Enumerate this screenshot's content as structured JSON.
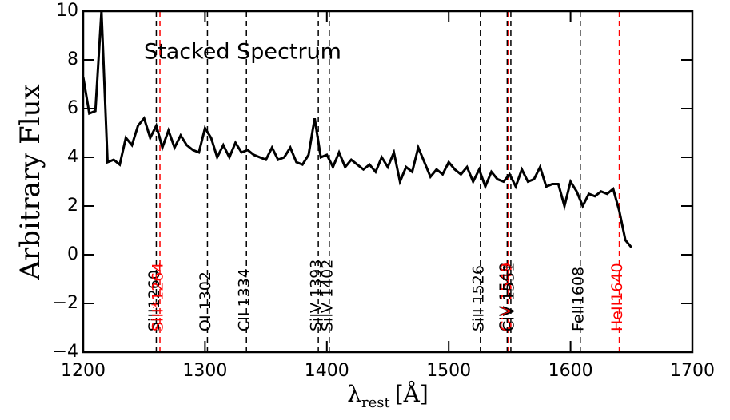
{
  "chart_data": {
    "type": "line",
    "title": "Stacked Spectrum",
    "y_label": "Arbitrary Flux",
    "x_label": {
      "symbol": "λ",
      "subscript": "rest",
      "unit": "[Å]"
    },
    "xlim": [
      1200,
      1700
    ],
    "xticks": [
      1200,
      1300,
      1400,
      1500,
      1600,
      1700
    ],
    "ylim": [
      -4,
      10
    ],
    "yticks": [
      {
        "value": -4,
        "label": "−4"
      },
      {
        "value": -2,
        "label": "−2"
      },
      0,
      2,
      4,
      6,
      8,
      10
    ],
    "series": [
      {
        "name": "Stacked Spectrum",
        "color": "#000000",
        "x": [
          1200,
          1205,
          1210,
          1215,
          1220,
          1225,
          1230,
          1235,
          1240,
          1245,
          1250,
          1255,
          1260,
          1265,
          1270,
          1275,
          1280,
          1285,
          1290,
          1295,
          1300,
          1305,
          1310,
          1315,
          1320,
          1325,
          1330,
          1335,
          1340,
          1345,
          1350,
          1355,
          1360,
          1365,
          1370,
          1375,
          1380,
          1385,
          1390,
          1395,
          1400,
          1405,
          1410,
          1415,
          1420,
          1425,
          1430,
          1435,
          1440,
          1445,
          1450,
          1455,
          1460,
          1465,
          1470,
          1475,
          1480,
          1485,
          1490,
          1495,
          1500,
          1505,
          1510,
          1515,
          1520,
          1525,
          1530,
          1535,
          1540,
          1545,
          1550,
          1555,
          1560,
          1565,
          1570,
          1575,
          1580,
          1585,
          1590,
          1595,
          1600,
          1605,
          1610,
          1615,
          1620,
          1625,
          1630,
          1635,
          1640,
          1645,
          1650
        ],
        "values": [
          7.3,
          5.8,
          5.9,
          10,
          3.8,
          3.9,
          3.7,
          4.8,
          4.5,
          5.3,
          5.6,
          4.8,
          5.3,
          4.4,
          5.1,
          4.4,
          4.9,
          4.5,
          4.3,
          4.2,
          5.2,
          4.8,
          4.0,
          4.5,
          4.0,
          4.6,
          4.2,
          4.3,
          4.1,
          4.0,
          3.9,
          4.4,
          3.9,
          4.0,
          4.4,
          3.8,
          3.7,
          4.1,
          5.6,
          4.0,
          4.1,
          3.6,
          4.2,
          3.6,
          3.9,
          3.7,
          3.5,
          3.7,
          3.4,
          4.0,
          3.6,
          4.2,
          3.0,
          3.6,
          3.4,
          4.4,
          3.8,
          3.2,
          3.5,
          3.3,
          3.8,
          3.5,
          3.3,
          3.6,
          3.0,
          3.5,
          2.8,
          3.4,
          3.1,
          3.0,
          3.3,
          2.8,
          3.5,
          3.0,
          3.1,
          3.6,
          2.8,
          2.9,
          2.9,
          2.0,
          3.0,
          2.6,
          2.0,
          2.5,
          2.4,
          2.6,
          2.5,
          2.7,
          1.8,
          0.6,
          0.3
        ]
      }
    ],
    "lines": [
      {
        "label": "SiII1260",
        "x": 1260,
        "color": "#000000"
      },
      {
        "label": "SiII*1264",
        "x": 1263,
        "color": "#ff0000"
      },
      {
        "label": "OI 1302",
        "x": 1302,
        "color": "#000000"
      },
      {
        "label": "CII 1334",
        "x": 1334,
        "color": "#000000"
      },
      {
        "label": "SiIV 1393",
        "x": 1393,
        "color": "#000000"
      },
      {
        "label": "SiIV 1402",
        "x": 1402,
        "color": "#000000"
      },
      {
        "label": "SiII 1526",
        "x": 1526,
        "color": "#000000"
      },
      {
        "label": "CIV 1548",
        "x": 1548,
        "color": "#000000"
      },
      {
        "label": "CIV 1549",
        "x": 1549,
        "color": "#ff0000"
      },
      {
        "label": "CIV 1551",
        "x": 1551,
        "color": "#000000"
      },
      {
        "label": "FeII1608",
        "x": 1608,
        "color": "#000000"
      },
      {
        "label": "HeII1640",
        "x": 1640,
        "color": "#ff0000"
      }
    ]
  }
}
